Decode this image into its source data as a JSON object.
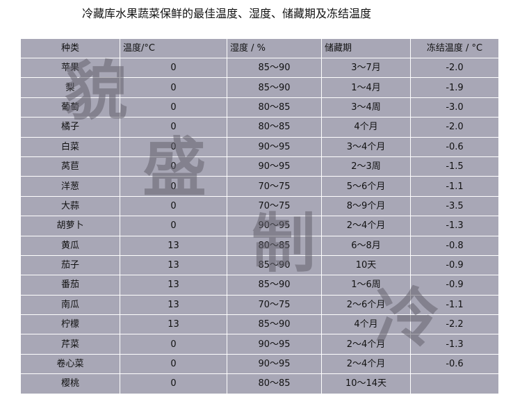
{
  "title": "冷藏库水果蔬菜保鲜的最佳温度、湿度、储藏期及冻结温度",
  "table": {
    "headers": [
      "种类",
      "温度/°C",
      "湿度 / %",
      "储藏期",
      "冻结温度 / °C"
    ],
    "rows": [
      [
        "苹果",
        "0",
        "85～90",
        "3～7月",
        "-2.0"
      ],
      [
        "梨",
        "0",
        "85～90",
        "1～4月",
        "-1.9"
      ],
      [
        "葡萄",
        "0",
        "80～85",
        "3～4周",
        "-3.0"
      ],
      [
        "橘子",
        "0",
        "80～85",
        "4个月",
        "-2.0"
      ],
      [
        "白菜",
        "0",
        "90～95",
        "3～4个月",
        "-0.6"
      ],
      [
        "莴苣",
        "0",
        "90～95",
        "2～3周",
        "-1.5"
      ],
      [
        "洋葱",
        "0",
        "70～75",
        "5～6个月",
        "-1.1"
      ],
      [
        "大蒜",
        "0",
        "70～75",
        "8～9个月",
        "-3.5"
      ],
      [
        "胡萝卜",
        "0",
        "90～95",
        "2～4个月",
        "-1.3"
      ],
      [
        "黄瓜",
        "13",
        "80～85",
        "6～8月",
        "-0.8"
      ],
      [
        "茄子",
        "13",
        "85～90",
        "10天",
        "-0.9"
      ],
      [
        "番茄",
        "13",
        "85～90",
        "1～6周",
        "-0.9"
      ],
      [
        "南瓜",
        "13",
        "70～75",
        "2～6个月",
        "-1.1"
      ],
      [
        "柠檬",
        "13",
        "85～90",
        "4个月",
        "-2.2"
      ],
      [
        "芹菜",
        "0",
        "90～95",
        "2～4个月",
        "-1.3"
      ],
      [
        "卷心菜",
        "0",
        "90～95",
        "2～4个月",
        "-0.6"
      ],
      [
        "樱桃",
        "0",
        "80～85",
        "10～14天",
        ""
      ]
    ]
  },
  "watermark": [
    "貌",
    "盛",
    "制",
    "冷"
  ],
  "colors": {
    "table_bg": "#a8a7b6",
    "grid": "#ffffff"
  }
}
